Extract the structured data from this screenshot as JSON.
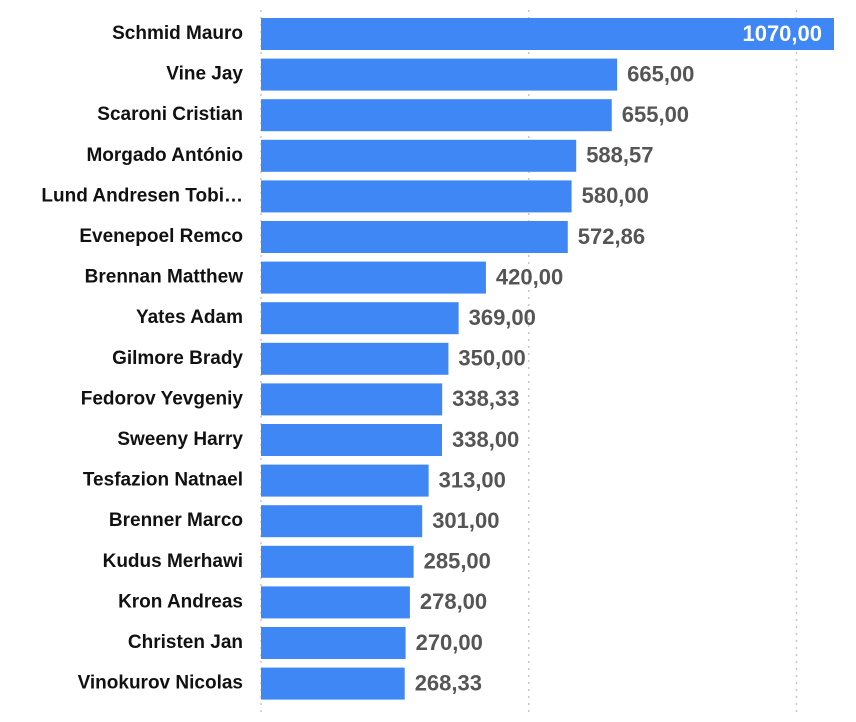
{
  "chart_data": {
    "type": "hbar",
    "categories": [
      "Schmid Mauro",
      "Vine Jay",
      "Scaroni Cristian",
      "Morgado António",
      "Lund Andresen Tobi…",
      "Evenepoel Remco",
      "Brennan Matthew",
      "Yates Adam",
      "Gilmore Brady",
      "Fedorov Yevgeniy",
      "Sweeny Harry",
      "Tesfazion Natnael",
      "Brenner Marco",
      "Kudus Merhawi",
      "Kron Andreas",
      "Christen Jan",
      "Vinokurov Nicolas"
    ],
    "values": [
      1070,
      665,
      655,
      588.57,
      580,
      572.86,
      420,
      369,
      350,
      338.33,
      338,
      313,
      301,
      285,
      278,
      270,
      268.33
    ],
    "value_labels": [
      "1070,00",
      "665,00",
      "655,00",
      "588,57",
      "580,00",
      "572,86",
      "420,00",
      "369,00",
      "350,00",
      "338,33",
      "338,00",
      "313,00",
      "301,00",
      "285,00",
      "278,00",
      "270,00",
      "268,33"
    ],
    "color": "#3f87f5",
    "xlim": [
      0,
      1070
    ],
    "xticks": [
      0,
      500,
      1000
    ],
    "grid": true
  }
}
